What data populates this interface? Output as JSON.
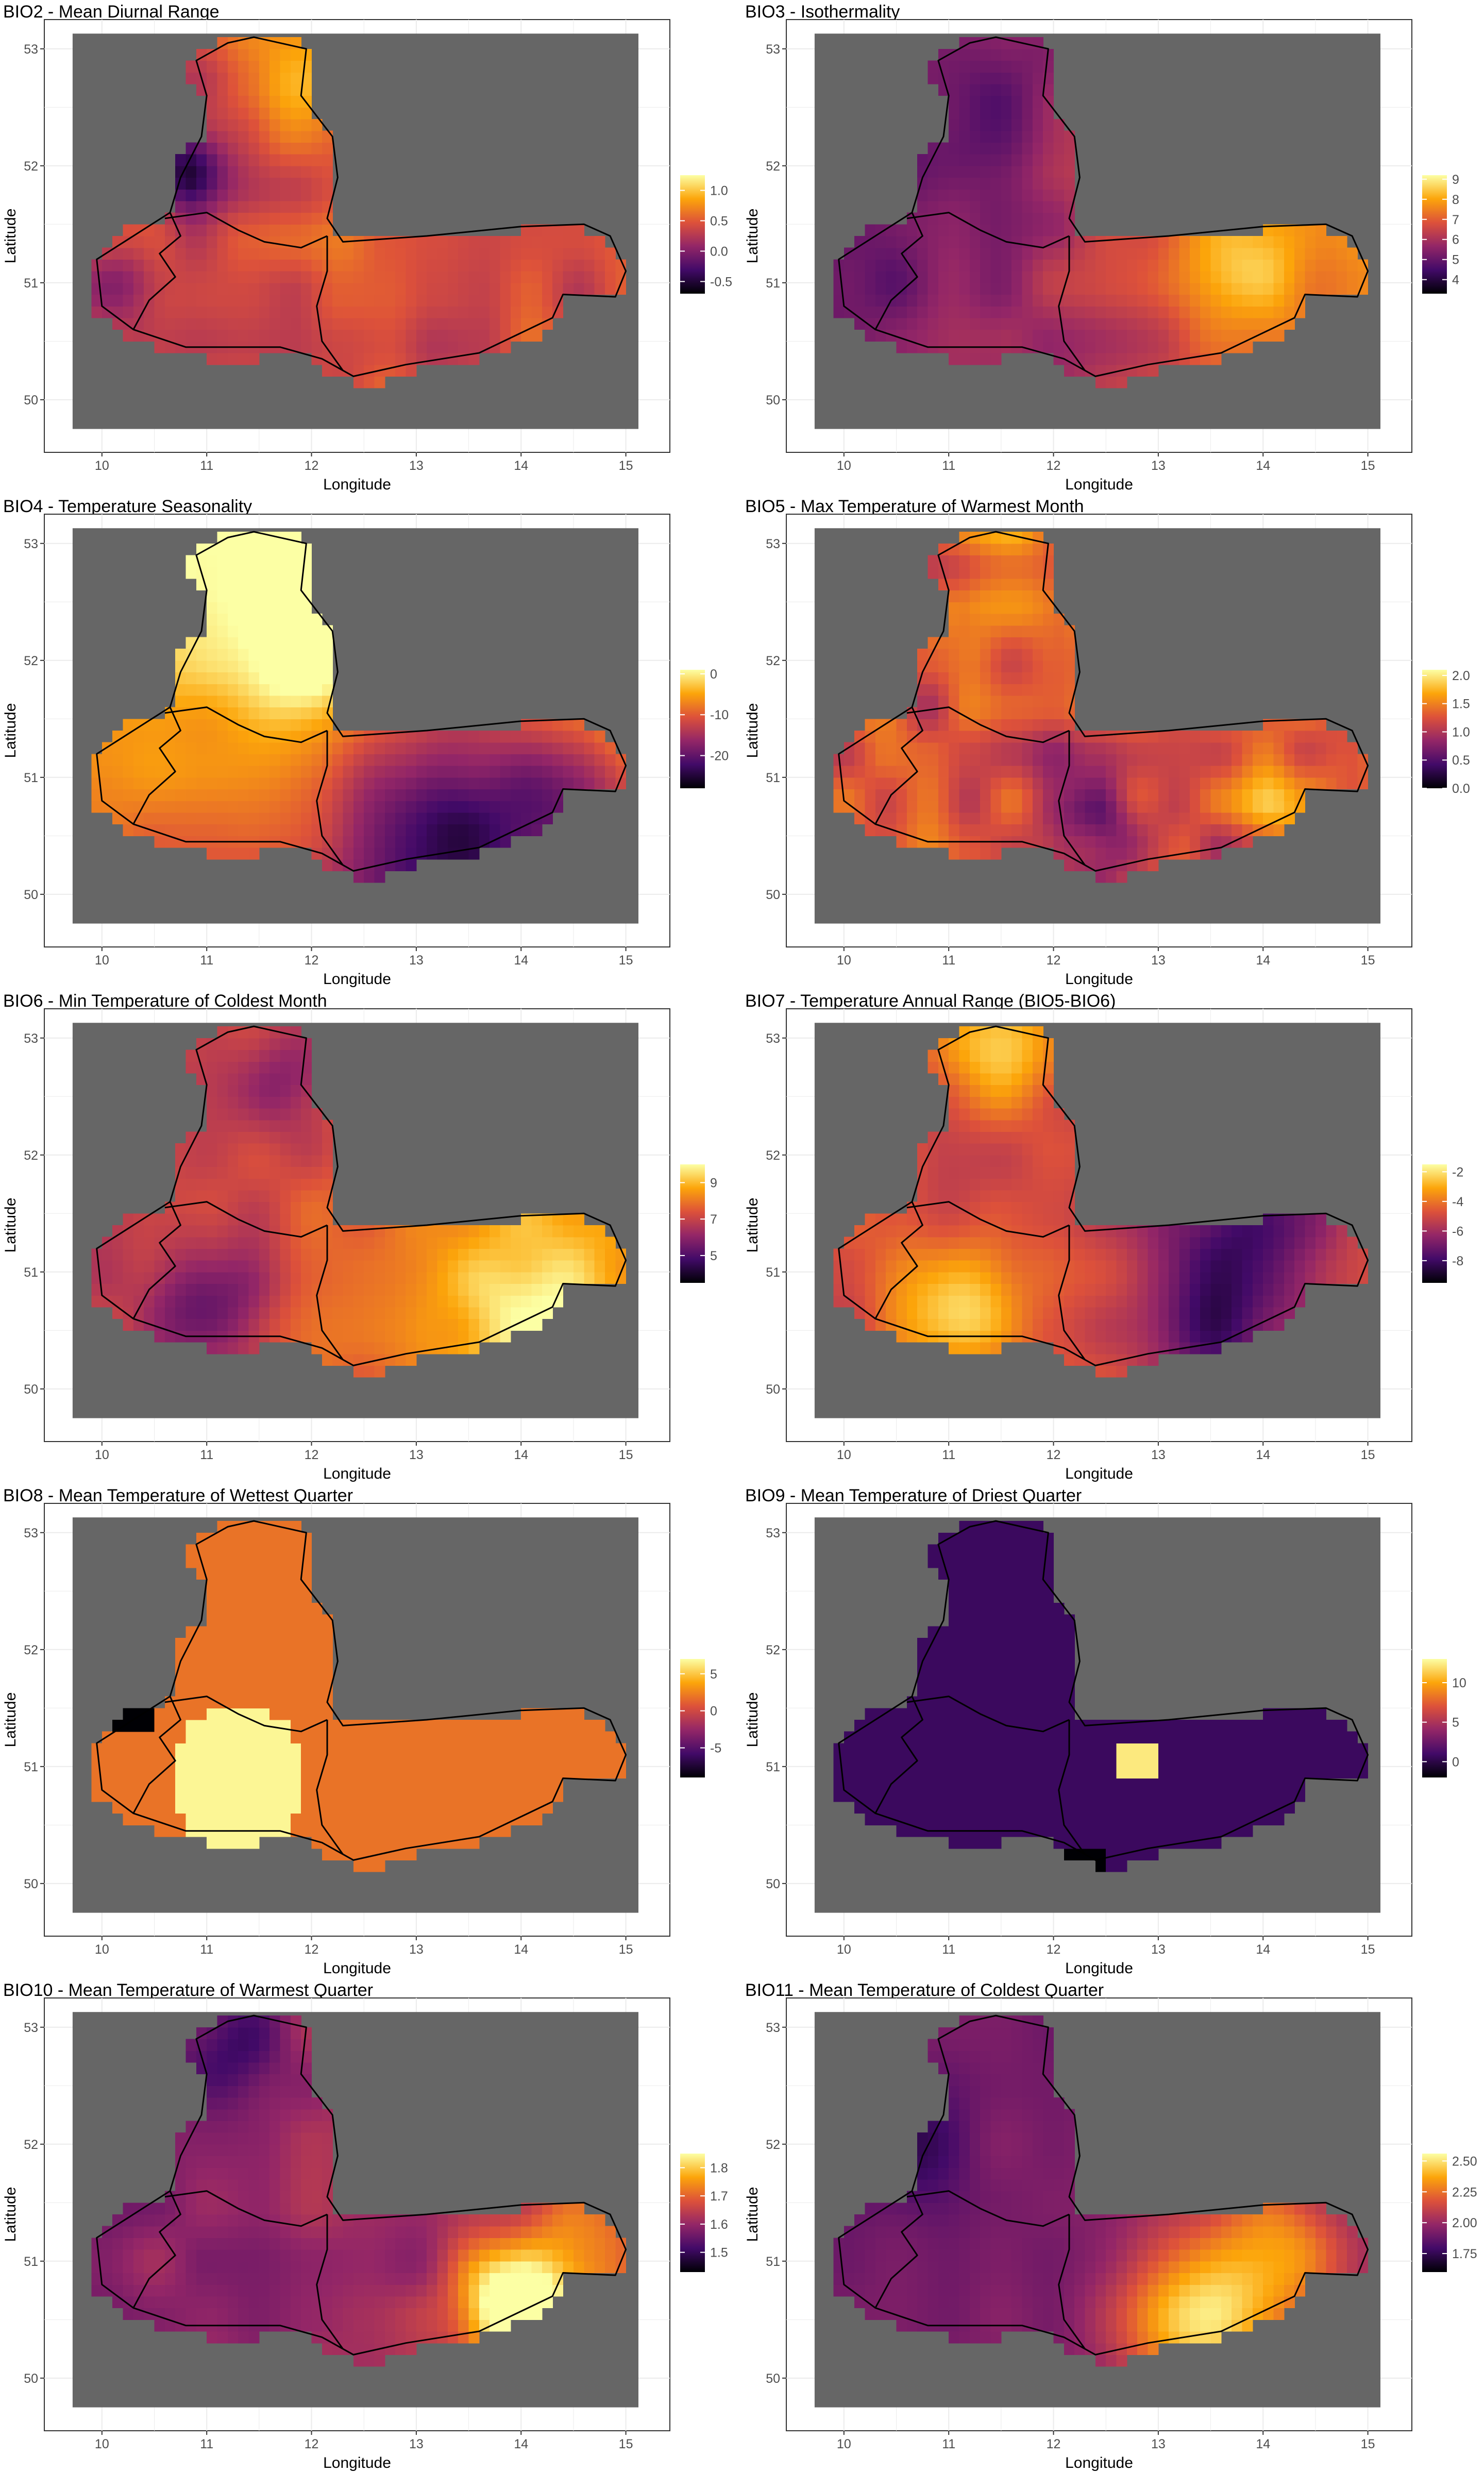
{
  "figure": {
    "x_axis_label": "Longitude",
    "y_axis_label": "Latitude",
    "x_ticks": [
      "10",
      "11",
      "12",
      "13",
      "14",
      "15"
    ],
    "y_ticks": [
      "50",
      "51",
      "52",
      "53"
    ],
    "palette": "inferno",
    "palette_colors": [
      "#000004",
      "#420a68",
      "#932667",
      "#dd513a",
      "#fca50a",
      "#fcffa4"
    ],
    "na_color": "#666666"
  },
  "panels": [
    {
      "title": "BIO2 - Mean Diurnal Range",
      "legend_ticks": [
        "1.0",
        "0.5",
        "0.0",
        "-0.5"
      ],
      "legend_range": [
        -0.7,
        1.25
      ]
    },
    {
      "title": "BIO3 - Isothermality",
      "legend_ticks": [
        "9",
        "8",
        "7",
        "6",
        "5",
        "4"
      ],
      "legend_range": [
        3.3,
        9.2
      ]
    },
    {
      "title": "BIO4 - Temperature Seasonality",
      "legend_ticks": [
        "0",
        "-10",
        "-20"
      ],
      "legend_range": [
        -28,
        1
      ]
    },
    {
      "title": "BIO5 - Max Temperature of Warmest Month",
      "legend_ticks": [
        "2.0",
        "1.5",
        "1.0",
        "0.5",
        "0.0"
      ],
      "legend_range": [
        0,
        2.1
      ]
    },
    {
      "title": "BIO6 - Min Temperature of Coldest Month",
      "legend_ticks": [
        "9",
        "7",
        "5"
      ],
      "legend_range": [
        3.5,
        10
      ]
    },
    {
      "title": "BIO7 - Temperature Annual Range (BIO5-BIO6)",
      "legend_ticks": [
        "-2",
        "-4",
        "-6",
        "-8"
      ],
      "legend_range": [
        -9.5,
        -1.5
      ]
    },
    {
      "title": "BIO8 - Mean Temperature of Wettest Quarter",
      "legend_ticks": [
        "5",
        "0",
        "-5"
      ],
      "legend_range": [
        -9,
        7
      ]
    },
    {
      "title": "BIO9 - Mean Temperature of Driest Quarter",
      "legend_ticks": [
        "10",
        "5",
        "0"
      ],
      "legend_range": [
        -2,
        13
      ]
    },
    {
      "title": "BIO10 - Mean Temperature of Warmest Quarter",
      "legend_ticks": [
        "1.8",
        "1.7",
        "1.6",
        "1.5"
      ],
      "legend_range": [
        1.43,
        1.85
      ]
    },
    {
      "title": "BIO11 - Mean Temperature of Coldest Quarter",
      "legend_ticks": [
        "2.50",
        "2.25",
        "2.00",
        "1.75"
      ],
      "legend_range": [
        1.6,
        2.56
      ]
    }
  ]
}
